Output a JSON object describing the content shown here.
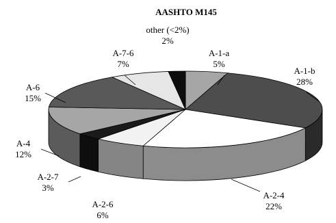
{
  "chart_data": {
    "type": "pie",
    "title": "AASHTO M145",
    "three_d": true,
    "slices": [
      {
        "category": "A-1-a",
        "value_label": "5%",
        "value": 5,
        "color": "#a6a6a6"
      },
      {
        "category": "A-1-b",
        "value_label": "28%",
        "value": 28,
        "color": "#4d4d4d"
      },
      {
        "category": "A-2-4",
        "value_label": "22%",
        "value": 22,
        "color": "#ffffff"
      },
      {
        "category": "A-2-6",
        "value_label": "6%",
        "value": 6,
        "color": "#f2f2f2"
      },
      {
        "category": "A-2-7",
        "value_label": "3%",
        "value": 3,
        "color": "#1a1a1a"
      },
      {
        "category": "A-4",
        "value_label": "12%",
        "value": 12,
        "color": "#a6a6a6"
      },
      {
        "category": "A-6",
        "value_label": "15%",
        "value": 15,
        "color": "#595959"
      },
      {
        "category": "A-7-6",
        "value_label": "7%",
        "value": 7,
        "color": "#e6e6e6"
      },
      {
        "category": "other (<2%)",
        "value_label": "2%",
        "value": 2,
        "color": "#0d0d0d"
      }
    ]
  }
}
